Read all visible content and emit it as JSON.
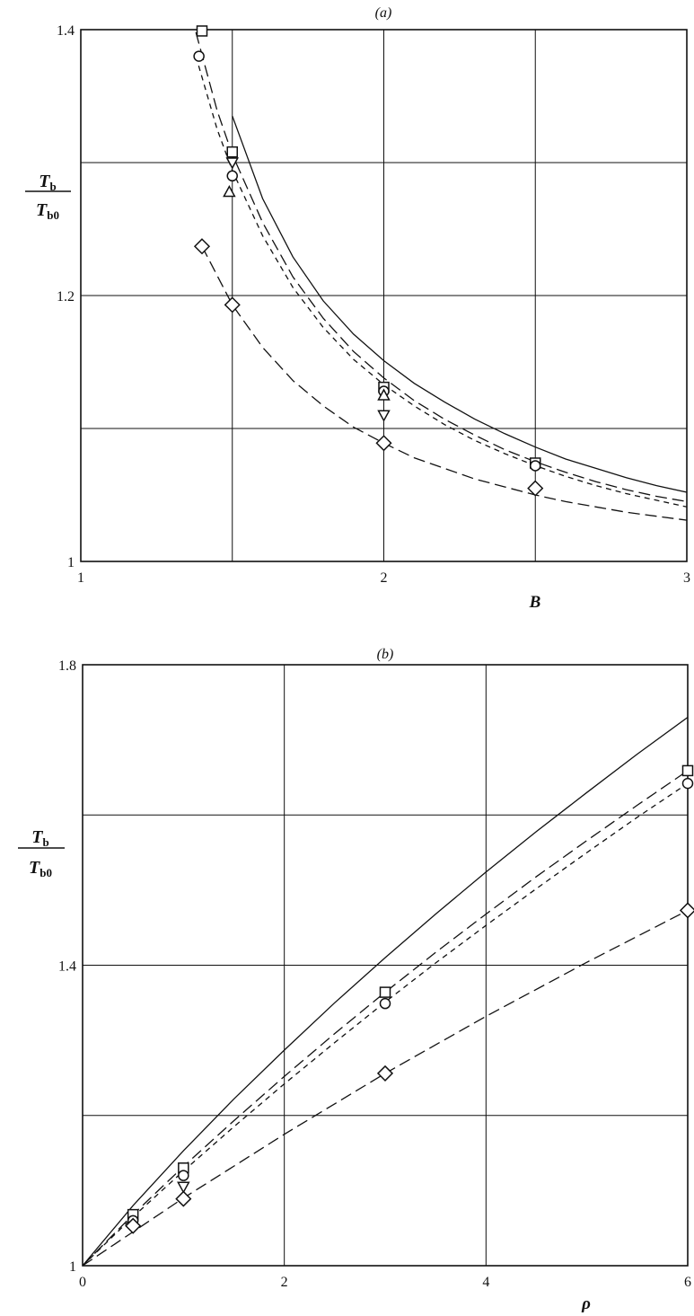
{
  "chart_data": [
    {
      "type": "line",
      "panel_label": "(a)",
      "xlabel": "B",
      "ylabel": {
        "main": "T",
        "sub_top": "b",
        "sub_bottom": "b0"
      },
      "xlim": [
        1,
        3
      ],
      "ylim": [
        1,
        1.4
      ],
      "x_ticks": [
        "1",
        "2",
        "3"
      ],
      "y_ticks": [
        "1",
        "1.2",
        "1.4"
      ],
      "grid": true,
      "curves": [
        {
          "style": "solid",
          "x": [
            1.5,
            1.6,
            1.7,
            1.8,
            1.9,
            2.0,
            2.1,
            2.2,
            2.3,
            2.4,
            2.5,
            2.6,
            2.7,
            2.8,
            2.9,
            3.0
          ],
          "y": [
            1.335,
            1.273,
            1.229,
            1.196,
            1.171,
            1.151,
            1.134,
            1.12,
            1.107,
            1.096,
            1.086,
            1.077,
            1.07,
            1.063,
            1.057,
            1.052
          ]
        },
        {
          "style": "long-dash",
          "x": [
            1.38,
            1.45,
            1.5,
            1.6,
            1.7,
            1.8,
            1.9,
            2.0,
            2.1,
            2.2,
            2.3,
            2.4,
            2.5,
            2.6,
            2.7,
            2.8,
            2.9,
            3.0
          ],
          "y": [
            1.398,
            1.339,
            1.306,
            1.255,
            1.214,
            1.183,
            1.158,
            1.138,
            1.121,
            1.107,
            1.095,
            1.084,
            1.075,
            1.067,
            1.06,
            1.054,
            1.049,
            1.045
          ]
        },
        {
          "style": "short-dash",
          "x": [
            1.38,
            1.45,
            1.5,
            1.6,
            1.7,
            1.8,
            1.9,
            2.0,
            2.1,
            2.2,
            2.3,
            2.4,
            2.5,
            2.6,
            2.7,
            2.8,
            2.9,
            3.0
          ],
          "y": [
            1.38,
            1.325,
            1.294,
            1.245,
            1.206,
            1.176,
            1.152,
            1.133,
            1.117,
            1.103,
            1.091,
            1.081,
            1.072,
            1.064,
            1.057,
            1.051,
            1.046,
            1.041
          ]
        },
        {
          "style": "long-dash",
          "x": [
            1.4,
            1.5,
            1.6,
            1.7,
            1.8,
            1.9,
            2.0,
            2.1,
            2.2,
            2.3,
            2.4,
            2.5,
            2.6,
            2.7,
            2.8,
            2.9,
            3.0
          ],
          "y": [
            1.237,
            1.193,
            1.161,
            1.136,
            1.117,
            1.101,
            1.089,
            1.078,
            1.07,
            1.062,
            1.056,
            1.05,
            1.045,
            1.041,
            1.037,
            1.034,
            1.031
          ]
        }
      ],
      "markers": [
        {
          "shape": "square",
          "points": [
            [
              1.4,
              1.399
            ],
            [
              1.5,
              1.308
            ],
            [
              2.0,
              1.131
            ],
            [
              2.5,
              1.074
            ]
          ]
        },
        {
          "shape": "circle",
          "points": [
            [
              1.39,
              1.38
            ],
            [
              1.5,
              1.29
            ],
            [
              2.0,
              1.128
            ],
            [
              2.5,
              1.072
            ]
          ]
        },
        {
          "shape": "triangle-up",
          "points": [
            [
              1.49,
              1.278
            ],
            [
              2.0,
              1.125
            ]
          ]
        },
        {
          "shape": "triangle-down",
          "points": [
            [
              1.5,
              1.3
            ],
            [
              2.0,
              1.11
            ]
          ]
        },
        {
          "shape": "diamond",
          "points": [
            [
              1.4,
              1.237
            ],
            [
              1.5,
              1.193
            ],
            [
              2.0,
              1.089
            ],
            [
              2.5,
              1.055
            ]
          ]
        }
      ]
    },
    {
      "type": "line",
      "panel_label": "(b)",
      "xlabel": "ρ",
      "ylabel": {
        "main": "T",
        "sub_top": "b",
        "sub_bottom": "b0"
      },
      "xlim": [
        0,
        6
      ],
      "ylim": [
        1,
        1.8
      ],
      "x_ticks": [
        "0",
        "2",
        "4",
        "6"
      ],
      "y_ticks": [
        "1",
        "1.4",
        "1.8"
      ],
      "grid": true,
      "curves": [
        {
          "style": "solid",
          "x": [
            0,
            0.5,
            1,
            1.5,
            2,
            2.5,
            3,
            3.5,
            4,
            4.5,
            5,
            5.5,
            6
          ],
          "y": [
            1.0,
            1.08,
            1.153,
            1.222,
            1.287,
            1.35,
            1.41,
            1.468,
            1.524,
            1.578,
            1.63,
            1.681,
            1.73
          ]
        },
        {
          "style": "long-dash",
          "x": [
            0,
            0.5,
            1,
            1.5,
            2,
            2.5,
            3,
            3.5,
            4,
            4.5,
            5,
            5.5,
            6
          ],
          "y": [
            1.0,
            1.068,
            1.132,
            1.193,
            1.252,
            1.309,
            1.364,
            1.417,
            1.468,
            1.518,
            1.566,
            1.613,
            1.659
          ]
        },
        {
          "style": "short-dash",
          "x": [
            0,
            0.5,
            1,
            1.5,
            2,
            2.5,
            3,
            3.5,
            4,
            4.5,
            5,
            5.5,
            6
          ],
          "y": [
            1.0,
            1.065,
            1.126,
            1.185,
            1.242,
            1.297,
            1.351,
            1.403,
            1.453,
            1.502,
            1.55,
            1.597,
            1.642
          ]
        },
        {
          "style": "long-dash",
          "x": [
            0,
            1,
            2,
            3,
            4,
            5,
            6
          ],
          "y": [
            1.0,
            1.09,
            1.175,
            1.256,
            1.332,
            1.404,
            1.473
          ]
        }
      ],
      "markers": [
        {
          "shape": "square",
          "points": [
            [
              0.5,
              1.068
            ],
            [
              1,
              1.13
            ],
            [
              3,
              1.364
            ],
            [
              6,
              1.659
            ]
          ]
        },
        {
          "shape": "circle",
          "points": [
            [
              0.5,
              1.06
            ],
            [
              1,
              1.12
            ],
            [
              3,
              1.349
            ],
            [
              6,
              1.642
            ]
          ]
        },
        {
          "shape": "triangle-down",
          "points": [
            [
              1,
              1.105
            ]
          ]
        },
        {
          "shape": "diamond",
          "points": [
            [
              0.5,
              1.053
            ],
            [
              1,
              1.089
            ],
            [
              3,
              1.256
            ],
            [
              6,
              1.473
            ]
          ]
        }
      ]
    }
  ]
}
